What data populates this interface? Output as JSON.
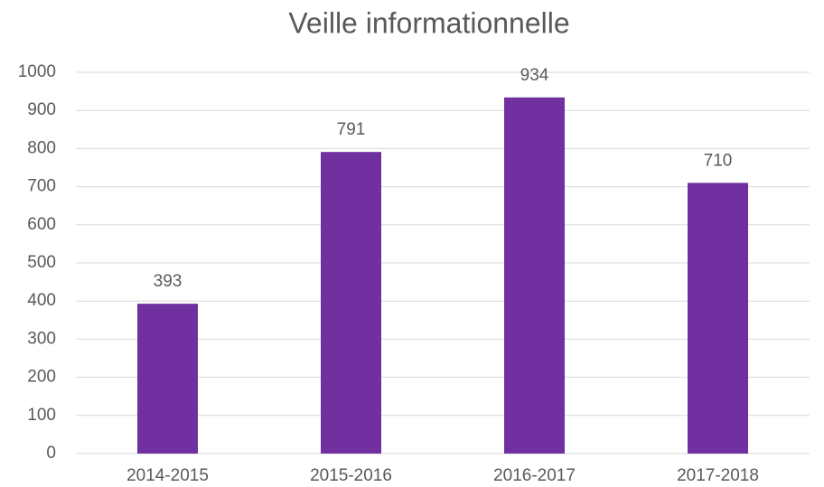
{
  "chart_data": {
    "type": "bar",
    "title": "Veille informationnelle",
    "categories": [
      "2014-2015",
      "2015-2016",
      "2016-2017",
      "2017-2018"
    ],
    "values": [
      393,
      791,
      934,
      710
    ],
    "color": "#7030a0",
    "ylim": [
      0,
      1000
    ],
    "yticks": [
      0,
      100,
      200,
      300,
      400,
      500,
      600,
      700,
      800,
      900,
      1000
    ],
    "grid": true
  }
}
